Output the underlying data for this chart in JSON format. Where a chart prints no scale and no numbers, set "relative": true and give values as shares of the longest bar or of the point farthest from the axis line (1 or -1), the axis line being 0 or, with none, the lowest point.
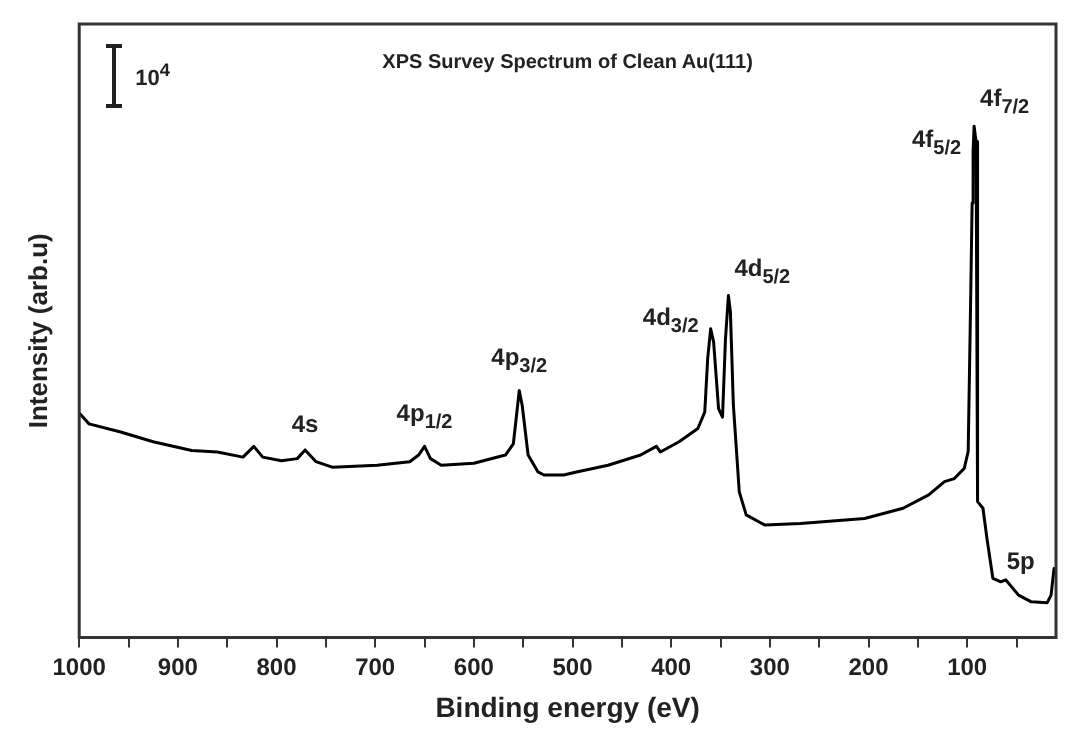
{
  "chart_data": {
    "type": "line",
    "title": "XPS Survey Spectrum of Clean Au(111)",
    "xlabel": "Binding energy (eV)",
    "ylabel": "Intensity (arb.u)",
    "relative": true,
    "color": "#000000",
    "marker": "none",
    "line_style": "solid",
    "grid": false,
    "legend": false,
    "x": [
      1000,
      990,
      958,
      925,
      886,
      860,
      834,
      823,
      814,
      795,
      779,
      771,
      760,
      743,
      698,
      665,
      656,
      650,
      644,
      633,
      600,
      568,
      560,
      556,
      554,
      551,
      545,
      535,
      529,
      509,
      496,
      464,
      431,
      415,
      411,
      392,
      373,
      366,
      363,
      360,
      357,
      352,
      348,
      345,
      342,
      340,
      337,
      331,
      324,
      305,
      269,
      204,
      165,
      139,
      123,
      113,
      103,
      99,
      97,
      95,
      94,
      93,
      91,
      89.5,
      84,
      80,
      74,
      66,
      61,
      48,
      35,
      19,
      15,
      12
    ],
    "values": [
      0.439,
      0.418,
      0.402,
      0.383,
      0.366,
      0.363,
      0.353,
      0.374,
      0.353,
      0.346,
      0.35,
      0.367,
      0.344,
      0.333,
      0.337,
      0.344,
      0.357,
      0.374,
      0.35,
      0.337,
      0.341,
      0.357,
      0.379,
      0.448,
      0.483,
      0.454,
      0.357,
      0.324,
      0.318,
      0.318,
      0.324,
      0.337,
      0.357,
      0.374,
      0.363,
      0.383,
      0.409,
      0.441,
      0.546,
      0.604,
      0.578,
      0.448,
      0.431,
      0.584,
      0.669,
      0.637,
      0.455,
      0.285,
      0.24,
      0.22,
      0.223,
      0.233,
      0.253,
      0.279,
      0.305,
      0.311,
      0.331,
      0.364,
      0.6,
      0.85,
      0.953,
      1,
      0.97,
      0.266,
      0.253,
      0.194,
      0.116,
      0.109,
      0.113,
      0.083,
      0.07,
      0.068,
      0.083,
      0.135
    ],
    "xlim": [
      1000,
      10
    ],
    "xticks": [
      1000,
      {
        "value": 950,
        "label": null
      },
      900,
      {
        "value": 850,
        "label": null
      },
      800,
      {
        "value": 750,
        "label": null
      },
      700,
      {
        "value": 650,
        "label": null
      },
      600,
      {
        "value": 550,
        "label": null
      },
      500,
      {
        "value": 450,
        "label": null
      },
      400,
      {
        "value": 350,
        "label": null
      },
      300,
      {
        "value": 250,
        "label": null
      },
      200,
      {
        "value": 150,
        "label": null
      },
      100,
      {
        "value": 50,
        "label": null
      }
    ],
    "annotations": [
      "10$^{4}$",
      {
        "text": "4s",
        "x": 771,
        "y": 0.367
      },
      {
        "text": "4p$_{1/2}$",
        "x": 650,
        "y": 0.374
      },
      {
        "text": "4p$_{3/2}$",
        "x": 554,
        "y": 0.483
      },
      {
        "text": "4d$_{3/2}$",
        "x": 360,
        "y": 0.604
      },
      {
        "text": "4d$_{5/2}$",
        "x": 342,
        "y": 0.669
      },
      {
        "text": "4f$_{5/2}$",
        "x": 94,
        "y": 0.953
      },
      {
        "text": "4f$_{7/2}$",
        "x": 93,
        "y": 1
      },
      {
        "text": "5p",
        "x": 66,
        "y": 0.109
      }
    ]
  }
}
